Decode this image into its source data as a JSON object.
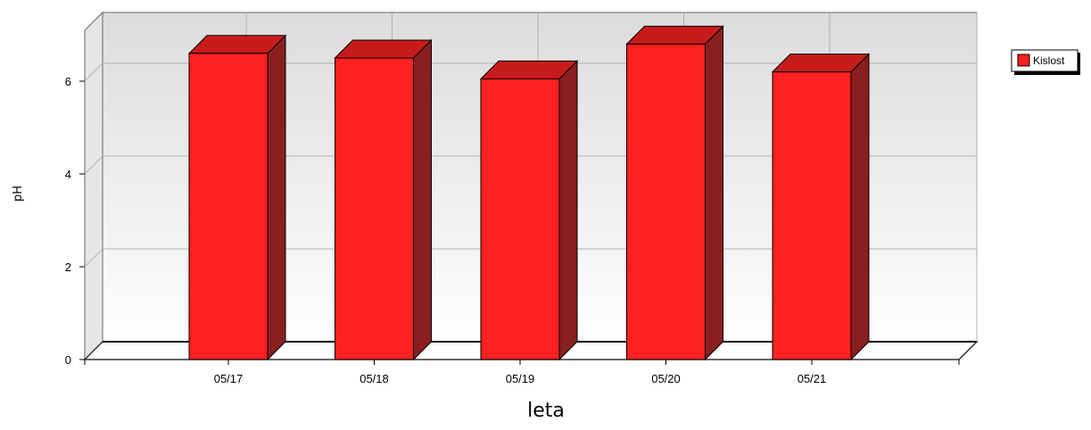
{
  "chart_data": {
    "type": "bar",
    "style": "3d",
    "categories": [
      "05/17",
      "05/18",
      "05/19",
      "05/20",
      "05/21"
    ],
    "series": [
      {
        "name": "Kislost",
        "color": "#ff2020",
        "values": [
          6.6,
          6.5,
          6.05,
          6.8,
          6.2
        ]
      }
    ],
    "xlabel": "leta",
    "ylabel": "pH",
    "ylim": [
      0,
      7.5
    ],
    "yticks": [
      0,
      2,
      4,
      6
    ],
    "grid": true,
    "legend_position": "top-right"
  }
}
